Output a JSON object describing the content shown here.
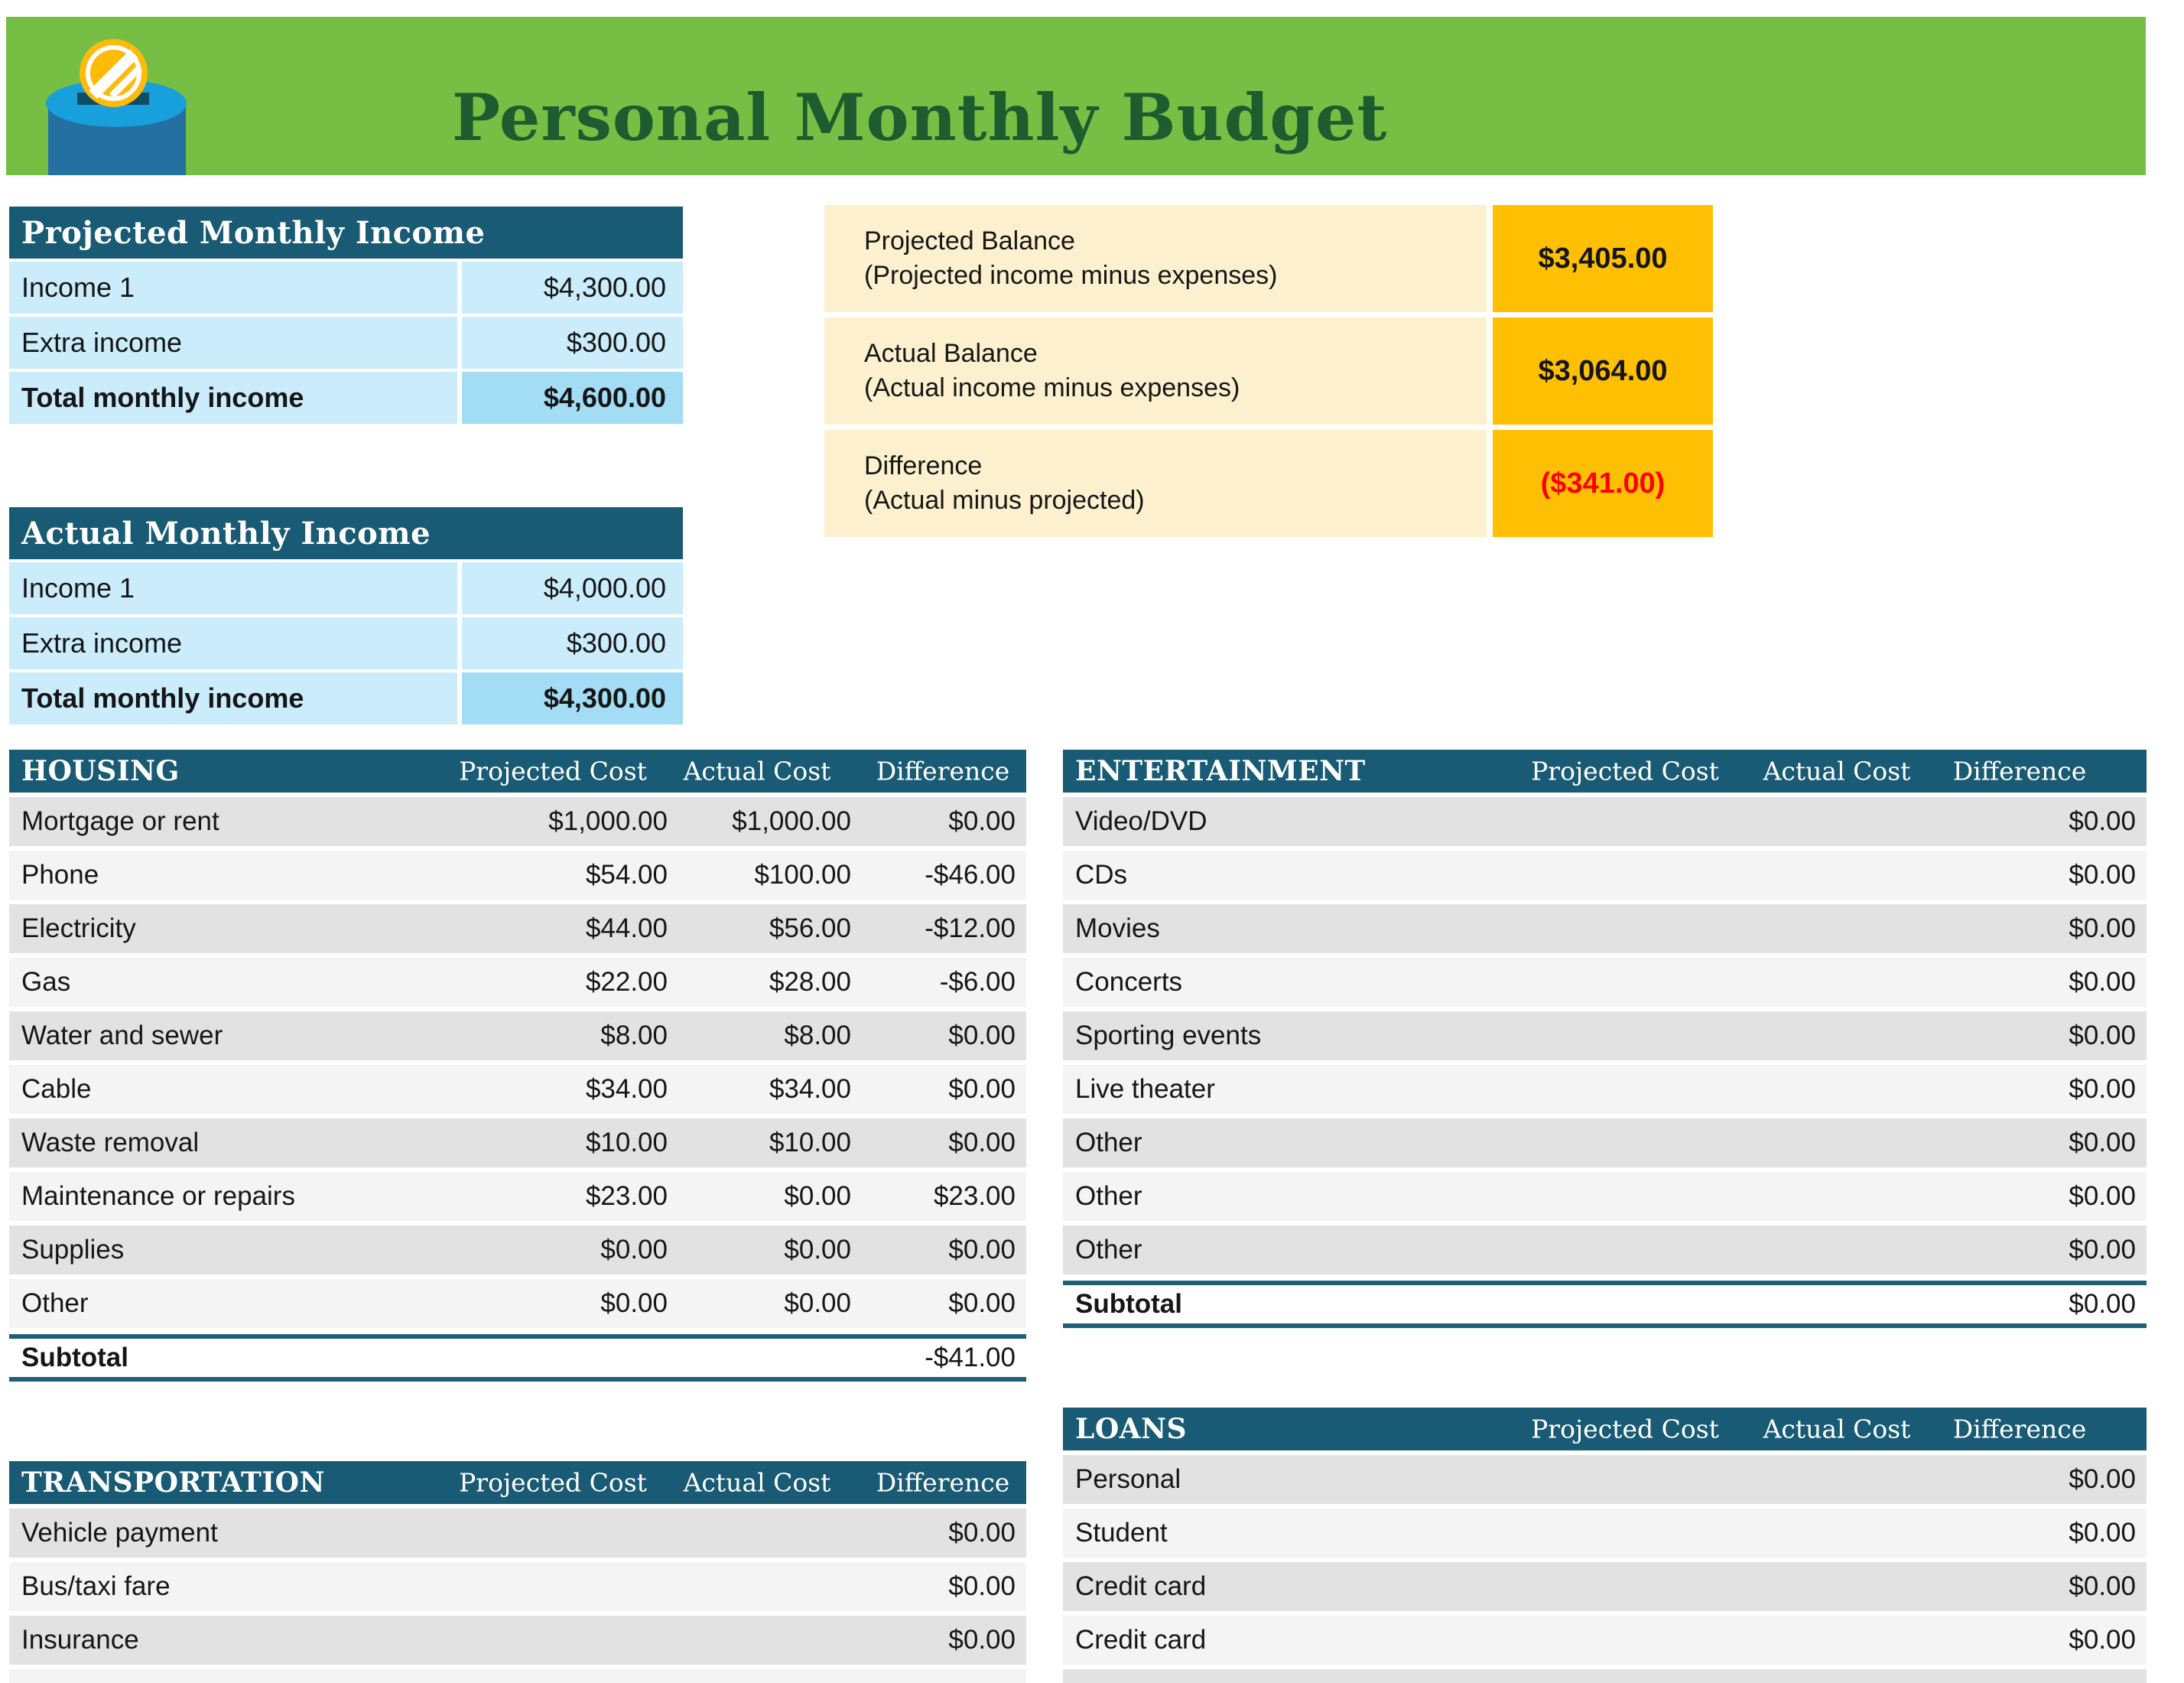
{
  "title": "Personal Monthly Budget",
  "icon": {
    "name": "money-box-with-coin",
    "coin_color": "#FFBA0A",
    "box_color": "#2470A0",
    "lid_color": "#18A0DC"
  },
  "colors": {
    "banner_green": "#76BF44",
    "title_green": "#1E5B2E",
    "header_teal": "#195A74",
    "light_blue": "#CBECFA",
    "total_blue": "#A3DDF5",
    "cream": "#FCF0CE",
    "amber": "#FFC003",
    "negative_red": "#FF0000",
    "row_gray_dark": "#E2E2E2",
    "row_gray_light": "#F4F4F4"
  },
  "income_tables": [
    {
      "id": "projected",
      "header": "Projected Monthly Income",
      "rows": [
        {
          "label": "Income 1",
          "value": "$4,300.00",
          "total": false
        },
        {
          "label": "Extra income",
          "value": "$300.00",
          "total": false
        },
        {
          "label": "Total monthly income",
          "value": "$4,600.00",
          "total": true
        }
      ]
    },
    {
      "id": "actual",
      "header": "Actual Monthly Income",
      "rows": [
        {
          "label": "Income 1",
          "value": "$4,000.00",
          "total": false
        },
        {
          "label": "Extra income",
          "value": "$300.00",
          "total": false
        },
        {
          "label": "Total monthly income",
          "value": "$4,300.00",
          "total": true
        }
      ]
    }
  ],
  "balance": {
    "rows": [
      {
        "label": "Projected Balance",
        "sublabel": "(Projected income minus expenses)",
        "value": "$3,405.00",
        "negative": false
      },
      {
        "label": "Actual Balance",
        "sublabel": "(Actual income minus expenses)",
        "value": "$3,064.00",
        "negative": false
      },
      {
        "label": "Difference",
        "sublabel": "(Actual minus projected)",
        "value": "($341.00)",
        "negative": true
      }
    ]
  },
  "expense_tables": [
    {
      "id": "housing",
      "title": "HOUSING",
      "columns": [
        "Projected Cost",
        "Actual Cost",
        "Difference"
      ],
      "rows": [
        {
          "label": "Mortgage or rent",
          "projected": "$1,000.00",
          "actual": "$1,000.00",
          "difference": "$0.00"
        },
        {
          "label": "Phone",
          "projected": "$54.00",
          "actual": "$100.00",
          "difference": "-$46.00"
        },
        {
          "label": "Electricity",
          "projected": "$44.00",
          "actual": "$56.00",
          "difference": "-$12.00"
        },
        {
          "label": "Gas",
          "projected": "$22.00",
          "actual": "$28.00",
          "difference": "-$6.00"
        },
        {
          "label": "Water and sewer",
          "projected": "$8.00",
          "actual": "$8.00",
          "difference": "$0.00"
        },
        {
          "label": "Cable",
          "projected": "$34.00",
          "actual": "$34.00",
          "difference": "$0.00"
        },
        {
          "label": "Waste removal",
          "projected": "$10.00",
          "actual": "$10.00",
          "difference": "$0.00"
        },
        {
          "label": "Maintenance or repairs",
          "projected": "$23.00",
          "actual": "$0.00",
          "difference": "$23.00"
        },
        {
          "label": "Supplies",
          "projected": "$0.00",
          "actual": "$0.00",
          "difference": "$0.00"
        },
        {
          "label": "Other",
          "projected": "$0.00",
          "actual": "$0.00",
          "difference": "$0.00"
        }
      ],
      "subtotal": {
        "label": "Subtotal",
        "difference": "-$41.00"
      },
      "partial_next_row": false
    },
    {
      "id": "entertainment",
      "title": "ENTERTAINMENT",
      "columns": [
        "Projected Cost",
        "Actual Cost",
        "Difference"
      ],
      "rows": [
        {
          "label": "Video/DVD",
          "projected": "",
          "actual": "",
          "difference": "$0.00"
        },
        {
          "label": "CDs",
          "projected": "",
          "actual": "",
          "difference": "$0.00"
        },
        {
          "label": "Movies",
          "projected": "",
          "actual": "",
          "difference": "$0.00"
        },
        {
          "label": "Concerts",
          "projected": "",
          "actual": "",
          "difference": "$0.00"
        },
        {
          "label": "Sporting events",
          "projected": "",
          "actual": "",
          "difference": "$0.00"
        },
        {
          "label": "Live theater",
          "projected": "",
          "actual": "",
          "difference": "$0.00"
        },
        {
          "label": "Other",
          "projected": "",
          "actual": "",
          "difference": "$0.00"
        },
        {
          "label": "Other",
          "projected": "",
          "actual": "",
          "difference": "$0.00"
        },
        {
          "label": "Other",
          "projected": "",
          "actual": "",
          "difference": "$0.00"
        }
      ],
      "subtotal": {
        "label": "Subtotal",
        "difference": "$0.00"
      },
      "partial_next_row": false
    },
    {
      "id": "transportation",
      "title": "TRANSPORTATION",
      "columns": [
        "Projected Cost",
        "Actual Cost",
        "Difference"
      ],
      "rows": [
        {
          "label": "Vehicle payment",
          "projected": "",
          "actual": "",
          "difference": "$0.00"
        },
        {
          "label": "Bus/taxi fare",
          "projected": "",
          "actual": "",
          "difference": "$0.00"
        },
        {
          "label": "Insurance",
          "projected": "",
          "actual": "",
          "difference": "$0.00"
        }
      ],
      "subtotal": null,
      "partial_next_row": true
    },
    {
      "id": "loans",
      "title": "LOANS",
      "columns": [
        "Projected Cost",
        "Actual Cost",
        "Difference"
      ],
      "rows": [
        {
          "label": "Personal",
          "projected": "",
          "actual": "",
          "difference": "$0.00"
        },
        {
          "label": "Student",
          "projected": "",
          "actual": "",
          "difference": "$0.00"
        },
        {
          "label": "Credit card",
          "projected": "",
          "actual": "",
          "difference": "$0.00"
        },
        {
          "label": "Credit card",
          "projected": "",
          "actual": "",
          "difference": "$0.00"
        }
      ],
      "subtotal": null,
      "partial_next_row": true
    }
  ]
}
